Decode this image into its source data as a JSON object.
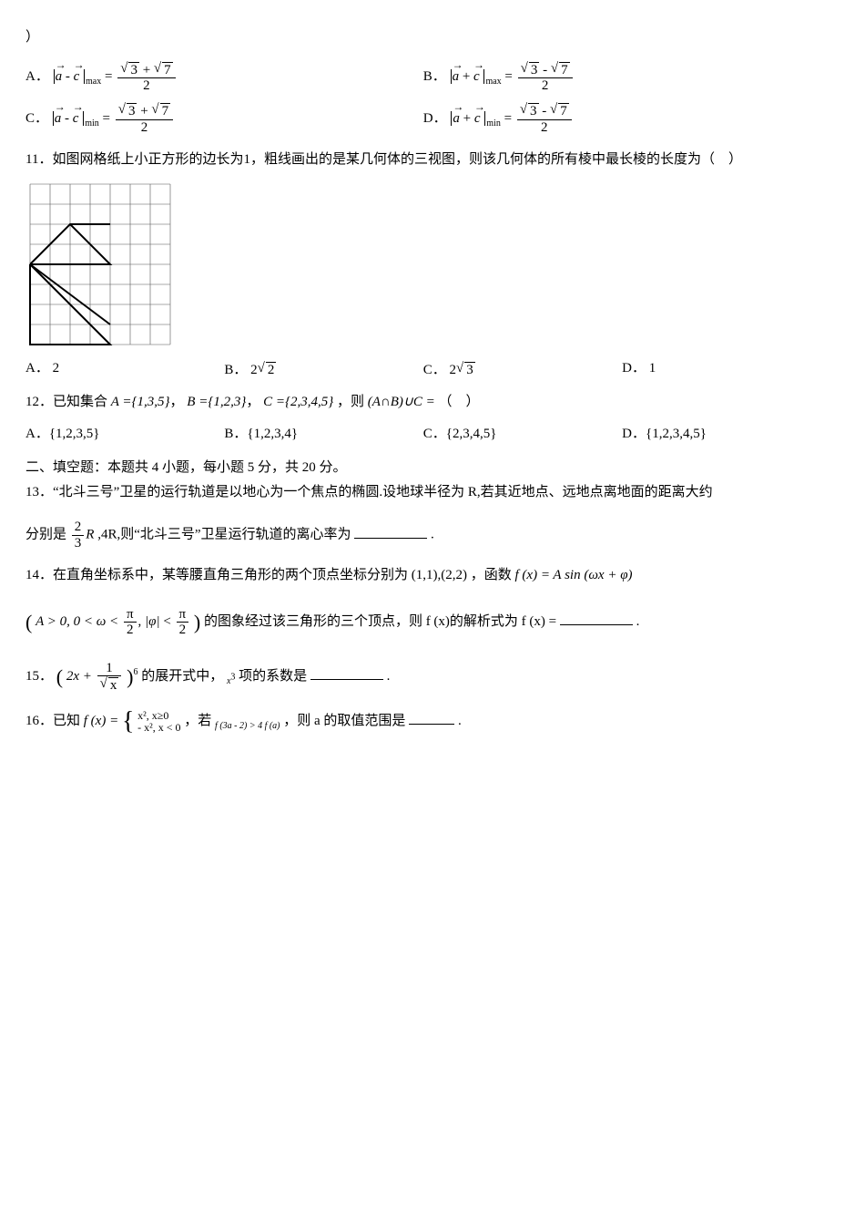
{
  "q10": {
    "close_paren": "）",
    "opts": {
      "A": {
        "label": "A．",
        "lhs_op": "-",
        "sub": "max",
        "sign": "+"
      },
      "B": {
        "label": "B．",
        "lhs_op": "+",
        "sub": "max",
        "sign": "-"
      },
      "C": {
        "label": "C．",
        "lhs_op": "-",
        "sub": "min",
        "sign": "+"
      },
      "D": {
        "label": "D．",
        "lhs_op": "+",
        "sub": "min",
        "sign": "-"
      }
    },
    "rhs_num_a": "3",
    "rhs_num_b": "7",
    "rhs_den": "2",
    "vec_a": "a",
    "vec_c": "c"
  },
  "q11": {
    "stem": "11．如图网格纸上小正方形的边长为1，粗线画出的是某几何体的三视图，则该几何体的所有棱中最长棱的长度为（　）",
    "grid": {
      "cols": 7,
      "rows": 8,
      "cell": 22,
      "stroke": "#000000",
      "grid_stroke": "#555555",
      "thick_stroke_width": 2,
      "polylines": [
        [
          [
            0,
            4
          ],
          [
            4,
            4
          ],
          [
            2,
            2
          ],
          [
            0,
            4
          ]
        ],
        [
          [
            2,
            2
          ],
          [
            4,
            2
          ]
        ],
        [
          [
            0,
            4
          ],
          [
            4,
            8
          ],
          [
            0,
            8
          ],
          [
            0,
            4
          ]
        ],
        [
          [
            0,
            4
          ],
          [
            4,
            7
          ]
        ]
      ]
    },
    "opts": {
      "A": {
        "label": "A．",
        "val_plain": "2"
      },
      "B": {
        "label": "B．",
        "coef": "2",
        "rad": "2"
      },
      "C": {
        "label": "C．",
        "coef": "2",
        "rad": "3"
      },
      "D": {
        "label": "D．",
        "val_plain": "1"
      }
    }
  },
  "q12": {
    "stem_pre": "12．已知集合",
    "A_set": "A ={1,3,5}",
    "B_set": "B ={1,2,3}",
    "C_set": "C ={2,3,4,5}",
    "then": "，则",
    "expr": "(A∩B)∪C =",
    "tail": "（　）",
    "comma": "，",
    "opts": {
      "A": {
        "label": "A．",
        "val": "{1,2,3,5}"
      },
      "B": {
        "label": "B．",
        "val": "{1,2,3,4}"
      },
      "C": {
        "label": "C．",
        "val": "{2,3,4,5}"
      },
      "D": {
        "label": "D．",
        "val": "{1,2,3,4,5}"
      }
    }
  },
  "section2": "二、填空题：本题共 4 小题，每小题 5 分，共 20 分。",
  "q13": {
    "stem1": "13．“北斗三号”卫星的运行轨道是以地心为一个焦点的椭圆.设地球半径为 R,若其近地点、远地点离地面的距离大约",
    "stem2_pre": "分别是",
    "frac_num": "2",
    "frac_den": "3",
    "R": "R",
    "mid": ",4R,则“北斗三号”卫星运行轨道的离心率为",
    "period": "."
  },
  "q14": {
    "stem_a": "14．在直角坐标系中，某等腰直角三角形的两个顶点坐标分别为",
    "pts": "(1,1),(2,2)",
    "stem_b": "，函数",
    "fdef": "f (x) = A sin (ωx + φ)",
    "cond_pre": "A > 0, 0 < ω <",
    "pi": "π",
    "two": "2",
    "phi": "|φ|",
    "lt": "<",
    "stem_c": "的图象经过该三角形的三个顶点，则 f (x)的解析式为 f (x) =",
    "period": "."
  },
  "q15": {
    "label": "15．",
    "inner_a": "2x +",
    "one": "1",
    "sqx": "x",
    "pow": "6",
    "mid": "的展开式中，",
    "xpow": "x",
    "xpow_exp": "3",
    "tail": "项的系数是",
    "period": "."
  },
  "q16": {
    "label": "16．已知",
    "f": "f (x) =",
    "top": "x², x≥0",
    "bot": "- x², x < 0",
    "mid": "，若",
    "cond": "f (3a - 2) > 4 f (a)",
    "tail": "，则 a 的取值范围是",
    "period": "."
  }
}
